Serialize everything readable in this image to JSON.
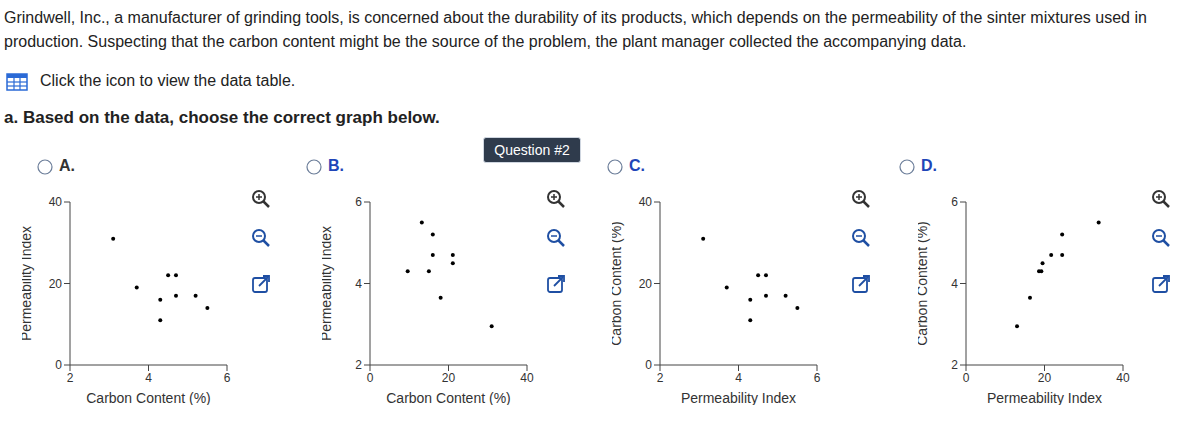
{
  "question": {
    "text": "Grindwell, Inc., a manufacturer of grinding tools, is concerned about the durability of its products, which depends on the permeability of the sinter mixtures used in production. Suspecting that the carbon content might be the source of the problem, the plant manager collected the accompanying data.",
    "link": "Click the icon to view the data table.",
    "prompt": "a. Based on the data, choose the correct graph below.",
    "badge": "Question #2"
  },
  "chart_data": [
    {
      "type": "scatter",
      "title": "A.",
      "x_label": "Carbon Content (%)",
      "y_label": "Permeability Index",
      "x": [
        3.1,
        3.7,
        4.3,
        4.3,
        4.5,
        4.7,
        4.7,
        5.2,
        5.5
      ],
      "values": [
        31,
        19,
        16,
        11,
        22,
        22,
        17,
        17,
        14
      ],
      "xlim": [
        2,
        6
      ],
      "xticks": [
        2,
        4,
        6
      ],
      "ylim": [
        0,
        40
      ],
      "yticks": [
        0,
        20,
        40
      ],
      "color": "#000000"
    },
    {
      "type": "scatter",
      "title": "B.",
      "x_label": "Carbon Content (%)",
      "y_label": "Permeability Index",
      "x": [
        9.6,
        13.2,
        16,
        16,
        15,
        18,
        21.1,
        21.1,
        31
      ],
      "values": [
        4.3,
        5.5,
        5.2,
        4.7,
        4.3,
        3.65,
        4.7,
        4.5,
        2.95
      ],
      "xlim": [
        0,
        40
      ],
      "xticks": [
        0,
        20,
        40
      ],
      "ylim": [
        2,
        6
      ],
      "yticks": [
        2,
        4,
        6
      ],
      "color": "#000000"
    },
    {
      "type": "scatter",
      "title": "C.",
      "x_label": "Permeability Index",
      "y_label": "Carbon Content (%)",
      "x": [
        3.1,
        3.7,
        4.3,
        4.3,
        4.5,
        4.7,
        4.7,
        5.2,
        5.5
      ],
      "values": [
        31,
        19,
        16,
        11,
        22,
        22,
        17,
        17,
        14
      ],
      "xlim": [
        2,
        6
      ],
      "xticks": [
        2,
        4,
        6
      ],
      "ylim": [
        0,
        40
      ],
      "yticks": [
        0,
        20,
        40
      ],
      "color": "#000000"
    },
    {
      "type": "scatter",
      "title": "D.",
      "x_label": "Permeability Index",
      "y_label": "Carbon Content (%)",
      "x": [
        13,
        16.3,
        18.6,
        19.2,
        19.5,
        21.7,
        24.5,
        24.5,
        33.8
      ],
      "values": [
        2.95,
        3.65,
        4.3,
        4.3,
        4.5,
        4.7,
        4.7,
        5.2,
        5.5
      ],
      "xlim": [
        0,
        40
      ],
      "xticks": [
        0,
        20,
        40
      ],
      "ylim": [
        2,
        6
      ],
      "yticks": [
        2,
        4,
        6
      ],
      "color": "#000000"
    }
  ]
}
